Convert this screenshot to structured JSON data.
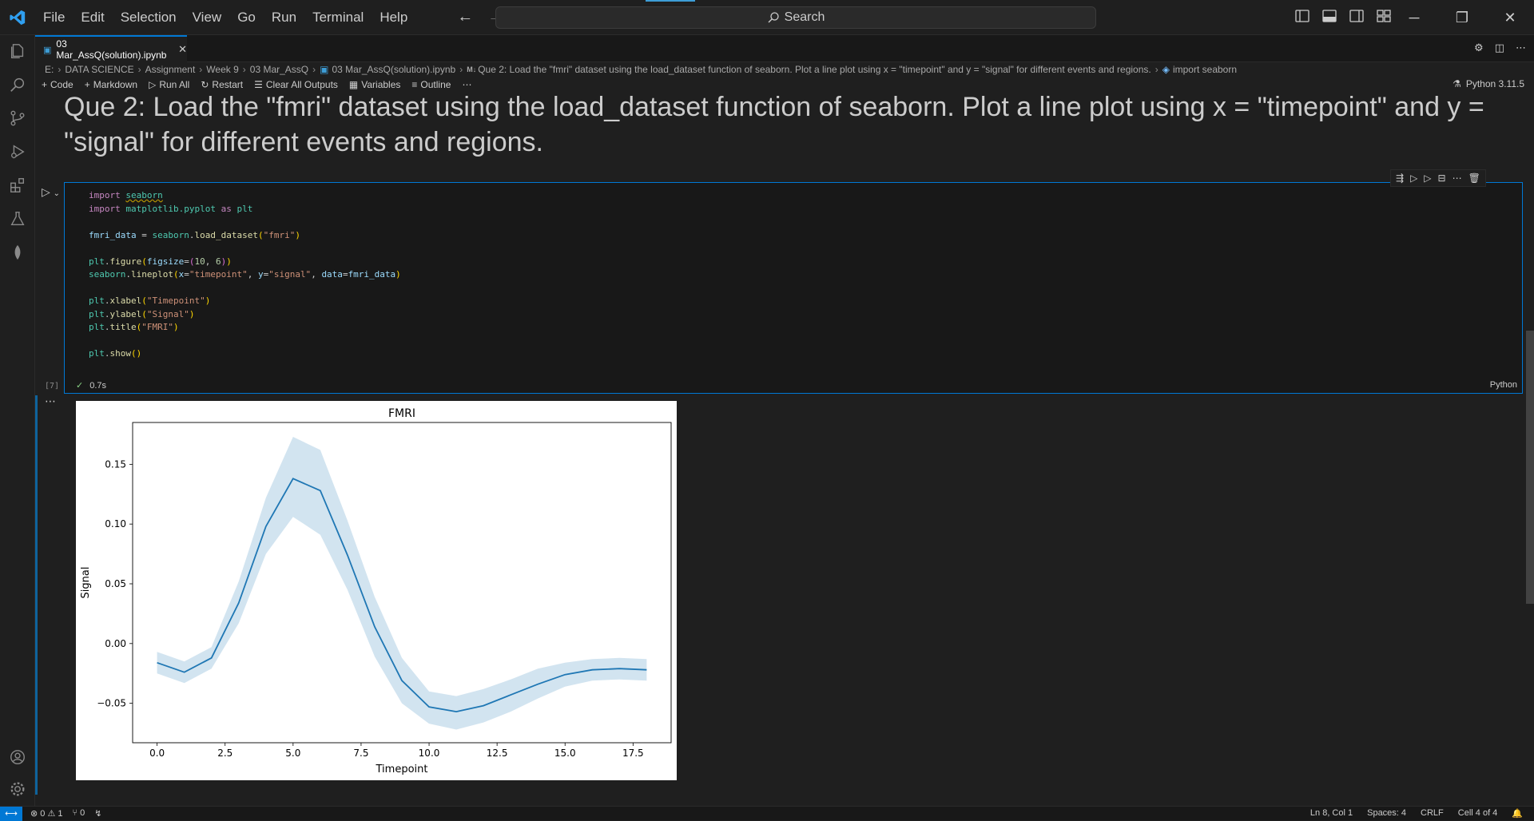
{
  "menu": [
    "File",
    "Edit",
    "Selection",
    "View",
    "Go",
    "Run",
    "Terminal",
    "Help"
  ],
  "search": {
    "label": "Search"
  },
  "tab": {
    "name": "03 Mar_AssQ(solution).ipynb"
  },
  "breadcrumbs": [
    "E:",
    "DATA SCIENCE",
    "Assignment",
    "Week 9",
    "03 Mar_AssQ",
    "03 Mar_AssQ(solution).ipynb",
    "Que 2: Load the \"fmri\" dataset using the load_dataset function of seaborn. Plot a line plot using x = \"timepoint\" and y = \"signal\" for different events and regions.",
    "import seaborn"
  ],
  "toolbar": {
    "code": "Code",
    "markdown": "Markdown",
    "run_all": "Run All",
    "restart": "Restart",
    "clear_outputs": "Clear All Outputs",
    "variables": "Variables",
    "outline": "Outline",
    "kernel": "Python 3.11.5"
  },
  "markdown_cell": {
    "text": "Que 2: Load the \"fmri\" dataset using the load_dataset function of seaborn. Plot a line plot using x = \"timepoint\" and y = \"signal\" for different events and regions."
  },
  "code_cell": {
    "exec_count": "[7]",
    "duration": "0.7s",
    "language": "Python"
  },
  "statusbar": {
    "errors": "0",
    "warnings": "1",
    "ports": "0",
    "position": "Ln 8, Col 1",
    "spaces": "Spaces: 4",
    "eol": "CRLF",
    "cell": "Cell 4 of 4"
  },
  "chart_data": {
    "type": "line",
    "title": "FMRI",
    "xlabel": "Timepoint",
    "ylabel": "Signal",
    "xlim": [
      -0.9,
      18.9
    ],
    "ylim": [
      -0.083,
      0.185
    ],
    "xticks": [
      0.0,
      2.5,
      5.0,
      7.5,
      10.0,
      12.5,
      15.0,
      17.5
    ],
    "xtick_labels": [
      "0.0",
      "2.5",
      "5.0",
      "7.5",
      "10.0",
      "12.5",
      "15.0",
      "17.5"
    ],
    "yticks": [
      -0.05,
      0.0,
      0.05,
      0.1,
      0.15
    ],
    "ytick_labels": [
      "−0.05",
      "0.00",
      "0.05",
      "0.10",
      "0.15"
    ],
    "x": [
      0,
      1,
      2,
      3,
      4,
      5,
      6,
      7,
      8,
      9,
      10,
      11,
      12,
      13,
      14,
      15,
      16,
      17,
      18
    ],
    "y": [
      -0.016,
      -0.024,
      -0.012,
      0.034,
      0.098,
      0.138,
      0.128,
      0.074,
      0.014,
      -0.031,
      -0.053,
      -0.057,
      -0.052,
      -0.043,
      -0.034,
      -0.026,
      -0.022,
      -0.021,
      -0.022
    ],
    "ci_upper": [
      -0.007,
      -0.015,
      -0.003,
      0.052,
      0.122,
      0.173,
      0.162,
      0.103,
      0.039,
      -0.012,
      -0.04,
      -0.044,
      -0.038,
      -0.03,
      -0.021,
      -0.016,
      -0.013,
      -0.012,
      -0.013
    ],
    "ci_lower": [
      -0.025,
      -0.033,
      -0.021,
      0.017,
      0.075,
      0.106,
      0.091,
      0.045,
      -0.011,
      -0.05,
      -0.067,
      -0.072,
      -0.066,
      -0.057,
      -0.046,
      -0.036,
      -0.031,
      -0.03,
      -0.031
    ],
    "line_color": "#1f77b4",
    "band_color": "#1f77b4"
  }
}
